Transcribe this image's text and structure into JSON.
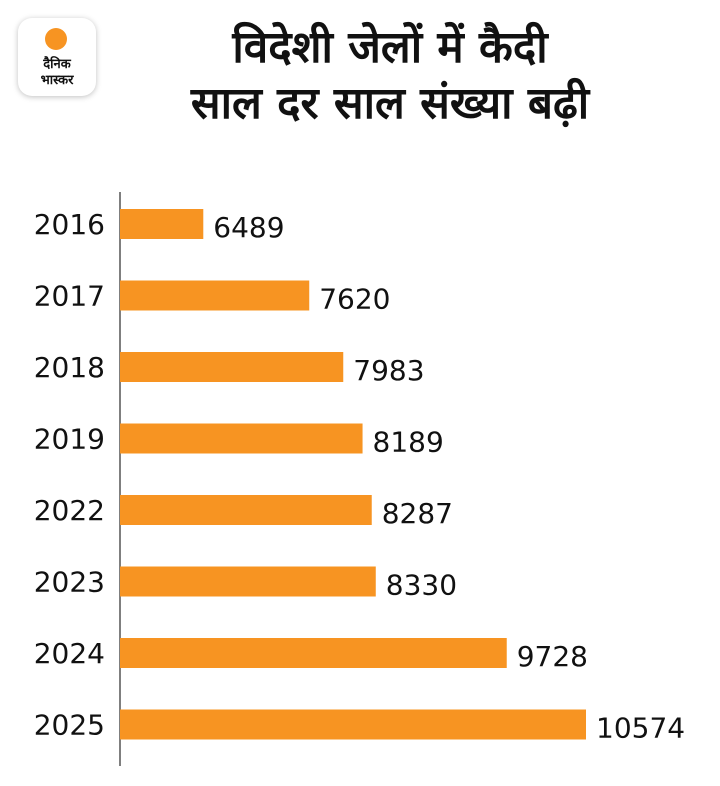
{
  "logo": {
    "line1": "दैनिक",
    "line2": "भास्कर"
  },
  "title": {
    "line1": "विदेशी जेलों में कैदी",
    "line2": "साल दर साल संख्या बढ़ी"
  },
  "colors": {
    "bar": "#f79422",
    "axis": "#555555",
    "text": "#111111"
  },
  "chart_data": {
    "type": "bar",
    "orientation": "horizontal",
    "title": "विदेशी जेलों में कैदी साल दर साल संख्या बढ़ी",
    "categories": [
      "2016",
      "2017",
      "2018",
      "2019",
      "2022",
      "2023",
      "2024",
      "2025"
    ],
    "values": [
      6489,
      7620,
      7983,
      8189,
      8287,
      8330,
      9728,
      10574
    ],
    "xlabel": "",
    "ylabel": "",
    "xlim": [
      5600,
      10574
    ],
    "grid": false,
    "legend": "none"
  }
}
